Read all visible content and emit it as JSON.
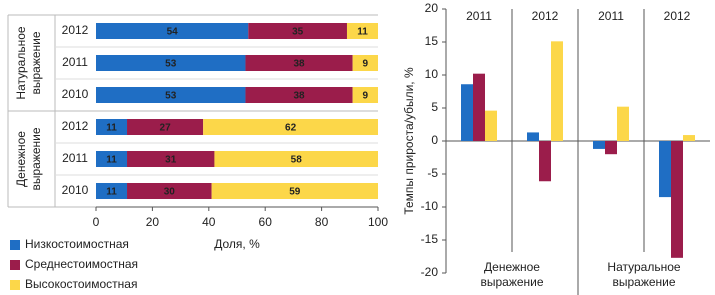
{
  "chart_data": [
    {
      "type": "stacked-bar-h",
      "groups": [
        {
          "label": [
            "Натуральное",
            "выражение"
          ],
          "categories": [
            "2012",
            "2011",
            "2010"
          ]
        },
        {
          "label": [
            "Денежное",
            "выражение"
          ],
          "categories": [
            "2012",
            "2011",
            "2010"
          ]
        }
      ],
      "series": [
        {
          "name": "Низкостоимостная",
          "color": "#1f6ec4",
          "values": [
            54,
            53,
            53,
            11,
            11,
            11
          ]
        },
        {
          "name": "Среднестоимостная",
          "color": "#9b1d4b",
          "values": [
            35,
            38,
            38,
            27,
            31,
            30
          ]
        },
        {
          "name": "Высокостоимостная",
          "color": "#fcd749",
          "values": [
            11,
            9,
            9,
            62,
            58,
            59
          ]
        }
      ],
      "xlim": [
        0,
        100
      ],
      "xticks": [
        0,
        20,
        40,
        60,
        80,
        100
      ],
      "xlabel": "Доля, %"
    },
    {
      "type": "bar",
      "groups": [
        {
          "label": [
            "Денежное",
            "выражение"
          ],
          "categories": [
            "2011",
            "2012"
          ]
        },
        {
          "label": [
            "Натуральное",
            "выражение"
          ],
          "categories": [
            "2011",
            "2012"
          ]
        }
      ],
      "series": [
        {
          "color": "#1f6ec4",
          "values": [
            8.6,
            1.3,
            -1.2,
            -8.5
          ]
        },
        {
          "color": "#9b1d4b",
          "values": [
            10.2,
            -6.1,
            -2.0,
            -17.7
          ]
        },
        {
          "color": "#fcd749",
          "values": [
            4.6,
            15.1,
            5.2,
            0.9
          ]
        }
      ],
      "ylim": [
        -20,
        20
      ],
      "yticks": [
        -20,
        -15,
        -10,
        -5,
        0,
        5,
        10,
        15,
        20
      ],
      "ylabel": "Темпы прироста/убыли, %"
    }
  ]
}
